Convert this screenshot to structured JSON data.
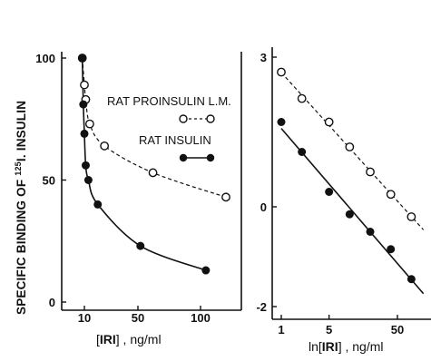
{
  "chart_data": [
    {
      "type": "scatter",
      "panel": "left",
      "ylabel_parts": {
        "pre": "SPECIFIC BINDING OF ",
        "sup": "125",
        "post": "I. INSULIN"
      },
      "xlabel_parts": {
        "open": "[",
        "bold": "IRI",
        "close": "]",
        "rest": " , ng/ml"
      },
      "xlim": [
        0,
        120
      ],
      "ylim": [
        0,
        100
      ],
      "xticks": [
        10,
        50,
        100
      ],
      "yticks": [
        0,
        50,
        100
      ],
      "grid": false,
      "series": [
        {
          "name": "RAT PROINSULIN L.M.",
          "marker": "open-circle",
          "line": "dashed",
          "x": [
            9,
            10,
            11,
            14,
            25,
            62,
            124
          ],
          "y": [
            100,
            89,
            83,
            73,
            64,
            53,
            43
          ]
        },
        {
          "name": "RAT INSULIN",
          "marker": "filled-circle",
          "line": "solid",
          "x": [
            9,
            9.5,
            10,
            11,
            13,
            20,
            52,
            105
          ],
          "y": [
            100,
            81,
            69,
            56,
            50,
            40,
            23,
            13
          ]
        }
      ]
    },
    {
      "type": "scatter",
      "panel": "right",
      "xlabel_parts": {
        "pre": "ln",
        "open": "[",
        "bold": "IRI",
        "close": "]",
        "rest": " , ng/ml"
      },
      "xscale": "log",
      "xlim": [
        0.9,
        100
      ],
      "ylim": [
        -2,
        3
      ],
      "xticks": [
        1,
        5,
        50
      ],
      "yticks": [
        -2,
        0,
        3
      ],
      "grid": false,
      "series": [
        {
          "name": "RAT PROINSULIN L.M.",
          "marker": "open-circle",
          "line": "dashed",
          "x": [
            1,
            2,
            5,
            10,
            20,
            40,
            80
          ],
          "y": [
            2.7,
            2.17,
            1.7,
            1.2,
            0.7,
            0.25,
            -0.2
          ]
        },
        {
          "name": "RAT INSULIN",
          "marker": "filled-circle",
          "line": "solid",
          "x": [
            1,
            2,
            5,
            10,
            20,
            40,
            80
          ],
          "y": [
            1.7,
            1.1,
            0.3,
            -0.15,
            -0.5,
            -0.85,
            -1.45
          ]
        }
      ]
    }
  ]
}
